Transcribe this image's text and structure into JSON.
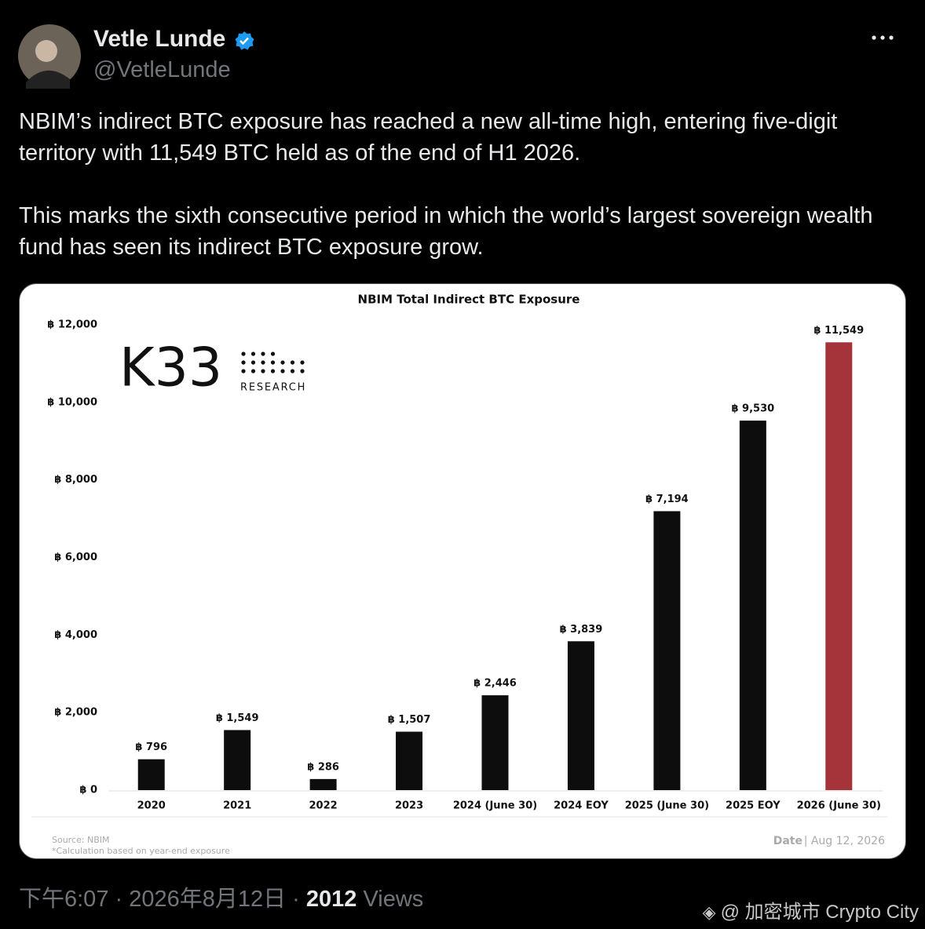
{
  "tweet": {
    "name": "Vetle Lunde",
    "handle": "@VetleLunde",
    "paragraphs": [
      "NBIM’s indirect BTC exposure has reached a new all-time high, entering five-digit territory with 11,549 BTC held as of the end of H1 2026.",
      "This marks the sixth consecutive period in which the world’s largest sovereign wealth fund has seen its indirect BTC exposure grow."
    ],
    "timestamp": "下午6:07 · 2026年8月12日 ·",
    "views": "2012",
    "views_label": "Views",
    "watermark": "@ 加密城市 Crypto City"
  },
  "chart_data": {
    "type": "bar",
    "title": "NBIM Total Indirect BTC Exposure",
    "logo": {
      "name": "K33",
      "subtitle": "RESEARCH"
    },
    "categories": [
      "2020",
      "2021",
      "2022",
      "2023",
      "2024 (June 30)",
      "2024 EOY",
      "2025 (June 30)",
      "2025 EOY",
      "2026 (June 30)"
    ],
    "values": [
      796,
      1549,
      286,
      1507,
      2446,
      3839,
      7194,
      9530,
      11549
    ],
    "value_labels": [
      "฿ 796",
      "฿ 1,549",
      "฿ 286",
      "฿ 1,507",
      "฿ 2,446",
      "฿ 3,839",
      "฿ 7,194",
      "฿ 9,530",
      "฿ 11,549"
    ],
    "colors": [
      "#0d0d0d",
      "#0d0d0d",
      "#0d0d0d",
      "#0d0d0d",
      "#0d0d0d",
      "#0d0d0d",
      "#0d0d0d",
      "#0d0d0d",
      "#a4343a"
    ],
    "ylim": [
      0,
      12000
    ],
    "yticks": [
      {
        "value": 0,
        "label": "฿ 0"
      },
      {
        "value": 2000,
        "label": "฿ 2,000"
      },
      {
        "value": 4000,
        "label": "฿ 4,000"
      },
      {
        "value": 6000,
        "label": "฿ 6,000"
      },
      {
        "value": 8000,
        "label": "฿ 8,000"
      },
      {
        "value": 10000,
        "label": "฿ 10,000"
      },
      {
        "value": 12000,
        "label": "฿ 12,000"
      }
    ],
    "grid": false,
    "source": "Source:  NBIM",
    "note": "*Calculation based on year-end exposure",
    "date_label": "Date",
    "date": "| Aug 12, 2026"
  }
}
